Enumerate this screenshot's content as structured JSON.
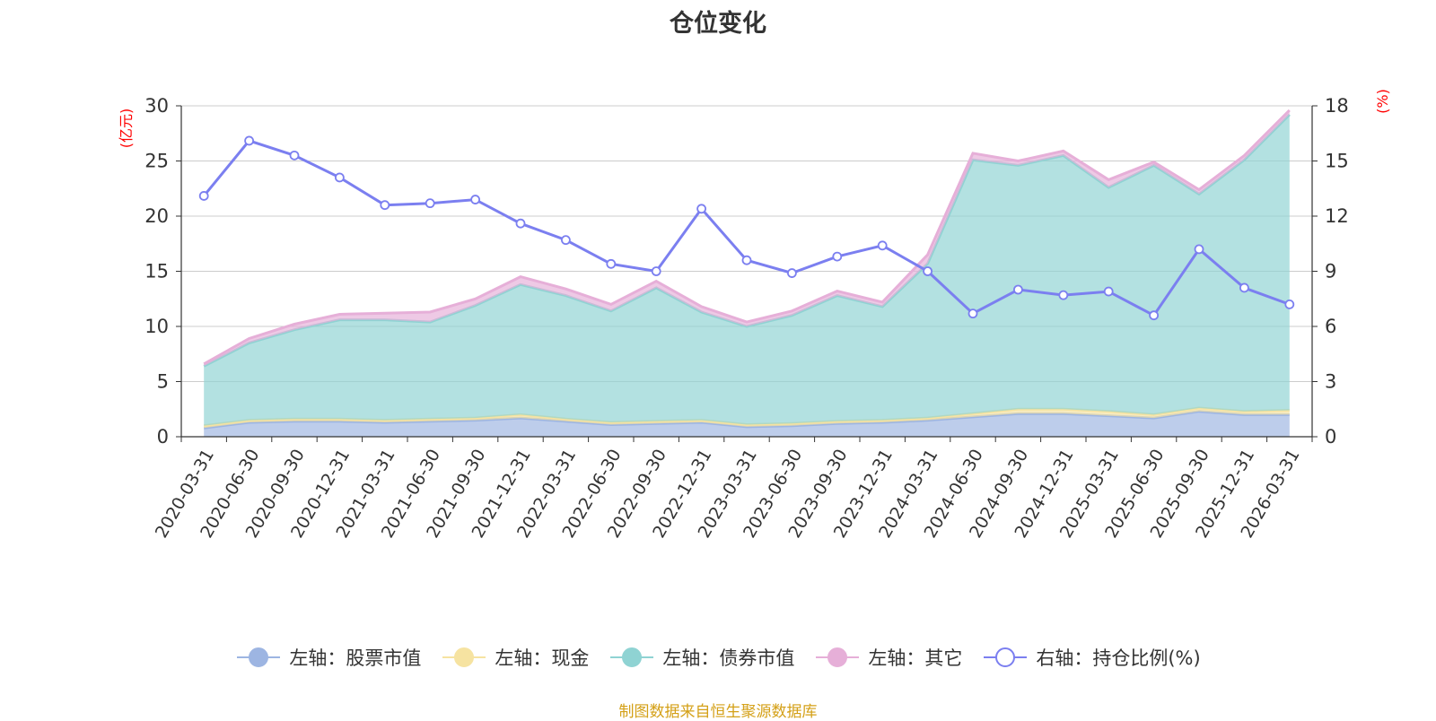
{
  "title": "仓位变化",
  "source_note": "制图数据来自恒生聚源数据库",
  "colors": {
    "stock": "#9db5e2",
    "cash": "#f6e3a1",
    "bond": "#8fd3d3",
    "other": "#e6afd8",
    "ratio": "#7b7ff0",
    "unit": "#ff0000",
    "grid": "#cccccc",
    "axis": "#333333"
  },
  "legend": [
    {
      "key": "stock",
      "label": "左轴：股票市值",
      "marker": "filled"
    },
    {
      "key": "cash",
      "label": "左轴：现金",
      "marker": "filled"
    },
    {
      "key": "bond",
      "label": "左轴：债券市值",
      "marker": "filled"
    },
    {
      "key": "other",
      "label": "左轴：其它",
      "marker": "filled"
    },
    {
      "key": "ratio",
      "label": "右轴：持仓比例(%)",
      "marker": "hollow"
    }
  ],
  "chart_data": {
    "type": "area",
    "title": "仓位变化",
    "categories": [
      "2020-03-31",
      "2020-06-30",
      "2020-09-30",
      "2020-12-31",
      "2021-03-31",
      "2021-06-30",
      "2021-09-30",
      "2021-12-31",
      "2022-03-31",
      "2022-06-30",
      "2022-09-30",
      "2022-12-31",
      "2023-03-31",
      "2023-06-30",
      "2023-09-30",
      "2023-12-31",
      "2024-03-31",
      "2024-06-30",
      "2024-09-30",
      "2024-12-31",
      "2025-03-31",
      "2025-06-30",
      "2025-09-30",
      "2025-12-31",
      "2026-03-31"
    ],
    "left_axis": {
      "label": "(亿元)",
      "ylim": [
        0,
        30
      ],
      "ticks": [
        0,
        5,
        10,
        15,
        20,
        25,
        30
      ]
    },
    "right_axis": {
      "label": "(%)",
      "ylim": [
        0,
        18
      ],
      "ticks": [
        0,
        3,
        6,
        9,
        12,
        15,
        18
      ]
    },
    "stacked": true,
    "series": [
      {
        "name": "左轴：股票市值",
        "key": "stock",
        "axis": "left",
        "values": [
          0.8,
          1.3,
          1.4,
          1.4,
          1.3,
          1.4,
          1.5,
          1.7,
          1.4,
          1.1,
          1.2,
          1.3,
          0.9,
          1.0,
          1.2,
          1.3,
          1.5,
          1.8,
          2.1,
          2.1,
          1.9,
          1.7,
          2.3,
          2.0,
          2.0
        ]
      },
      {
        "name": "左轴：现金",
        "key": "cash",
        "axis": "left",
        "values": [
          0.2,
          0.2,
          0.2,
          0.2,
          0.2,
          0.2,
          0.2,
          0.3,
          0.2,
          0.2,
          0.2,
          0.2,
          0.2,
          0.2,
          0.2,
          0.2,
          0.2,
          0.3,
          0.4,
          0.4,
          0.4,
          0.3,
          0.3,
          0.3,
          0.4
        ]
      },
      {
        "name": "左轴：债券市值",
        "key": "bond",
        "axis": "left",
        "values": [
          5.4,
          7.0,
          8.1,
          9.0,
          9.1,
          8.8,
          10.2,
          11.8,
          11.2,
          10.1,
          12.1,
          9.8,
          8.9,
          9.8,
          11.4,
          10.3,
          14.0,
          23.0,
          22.1,
          23.0,
          20.3,
          22.6,
          19.4,
          22.8,
          26.8
        ]
      },
      {
        "name": "左轴：其它",
        "key": "other",
        "axis": "left",
        "values": [
          0.2,
          0.4,
          0.5,
          0.5,
          0.6,
          0.9,
          0.6,
          0.7,
          0.6,
          0.6,
          0.6,
          0.5,
          0.4,
          0.4,
          0.4,
          0.4,
          0.8,
          0.6,
          0.4,
          0.4,
          0.7,
          0.3,
          0.4,
          0.4,
          0.4
        ]
      },
      {
        "name": "右轴：持仓比例(%)",
        "key": "ratio",
        "axis": "right",
        "type": "line",
        "values": [
          13.1,
          16.1,
          15.3,
          14.1,
          12.6,
          12.7,
          12.9,
          11.6,
          10.7,
          9.4,
          9.0,
          12.4,
          9.6,
          8.9,
          9.8,
          10.4,
          9.0,
          6.7,
          8.0,
          7.7,
          7.9,
          6.6,
          10.2,
          8.1,
          7.2
        ]
      }
    ]
  }
}
